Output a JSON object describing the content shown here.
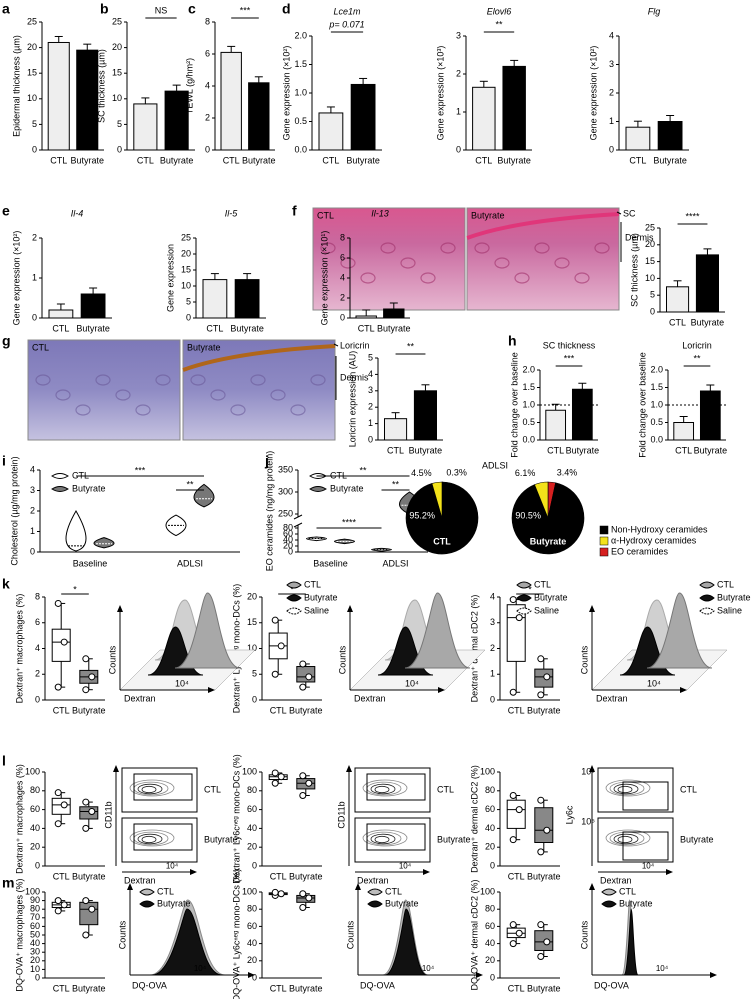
{
  "figure": {
    "panel_labels": [
      "a",
      "b",
      "c",
      "d",
      "e",
      "f",
      "g",
      "h",
      "i",
      "j",
      "k",
      "l",
      "m"
    ],
    "images": [
      {
        "label": "CTL"
      },
      {
        "label": "Butyrate",
        "markers": [
          "SC",
          "Dermis"
        ]
      },
      {
        "label": "CTL"
      },
      {
        "label": "Butyrate",
        "markers": [
          "Loricrin",
          "Dermis"
        ]
      }
    ],
    "flow": [
      {
        "legend": [
          "CTL",
          "Butyrate",
          "Saline"
        ],
        "xlabel": "Dextran",
        "ylabel": "Counts",
        "xticks": [
          "10⁴"
        ]
      },
      {
        "legend": [
          "CTL",
          "Butyrate",
          "Saline"
        ],
        "xlabel": "Dextran",
        "ylabel": "Counts",
        "xticks": [
          "10⁴"
        ]
      },
      {
        "legend": [
          "CTL",
          "Butyrate",
          "Saline"
        ],
        "xlabel": "Dextran",
        "ylabel": "Counts",
        "xticks": [
          "10⁴"
        ]
      },
      {
        "groups": [
          "CTL",
          "Butyrate"
        ],
        "xlabel": "Dextran",
        "ylabel": "CD11b",
        "xticks": [
          "10⁴"
        ]
      },
      {
        "groups": [
          "CTL",
          "Butyrate"
        ],
        "xlabel": "Dextran",
        "ylabel": "CD11b",
        "xticks": [
          "10⁴"
        ]
      },
      {
        "groups": [
          "CTL",
          "Butyrate"
        ],
        "xlabel": "Dextran",
        "ylabel": "Ly6c",
        "xticks": [
          "10⁴"
        ],
        "yticks": [
          "10⁵",
          "10⁵"
        ]
      },
      {
        "legend": [
          "CTL",
          "Butyrate"
        ],
        "xlabel": "DQ-OVA",
        "ylabel": "Counts",
        "xticks": [
          "10⁴"
        ]
      },
      {
        "legend": [
          "CTL",
          "Butyrate"
        ],
        "xlabel": "DQ-OVA",
        "ylabel": "Counts",
        "xticks": [
          "10⁴"
        ]
      },
      {
        "legend": [
          "CTL",
          "Butyrate"
        ],
        "xlabel": "DQ-OVA",
        "ylabel": "Counts",
        "xticks": [
          "10⁴"
        ]
      }
    ]
  },
  "chart_data": [
    {
      "type": "bar",
      "ylabel": "Epidermal thickness (µm)",
      "categories": [
        "CTL",
        "Butyrate"
      ],
      "values": [
        21,
        19.5
      ],
      "colors": [
        "#eeeeee",
        "#000000"
      ],
      "ylim": [
        0,
        25
      ],
      "yticks": [
        0,
        5,
        10,
        15,
        20,
        25
      ]
    },
    {
      "type": "bar",
      "ylabel": "SC thickness (µm)",
      "categories": [
        "CTL",
        "Butyrate"
      ],
      "values": [
        9,
        11.5
      ],
      "colors": [
        "#eeeeee",
        "#000000"
      ],
      "ylim": [
        0,
        25
      ],
      "yticks": [
        0,
        5,
        10,
        15,
        20,
        25
      ],
      "annotation": "NS"
    },
    {
      "type": "bar",
      "ylabel": "TEWL (g/hm²)",
      "categories": [
        "CTL",
        "Butyrate"
      ],
      "values": [
        6.1,
        4.2
      ],
      "colors": [
        "#eeeeee",
        "#000000"
      ],
      "ylim": [
        0,
        8
      ],
      "yticks": [
        0,
        2,
        4,
        6,
        8
      ],
      "annotation": "***"
    },
    {
      "type": "bar",
      "title": "Lce1m",
      "ylabel": "Gene expression (×10²)",
      "categories": [
        "CTL",
        "Butyrate"
      ],
      "values": [
        0.65,
        1.15
      ],
      "colors": [
        "#eeeeee",
        "#000000"
      ],
      "ylim": [
        0,
        2
      ],
      "yticks": [
        {
          "value": 0,
          "label": "0.0"
        },
        {
          "value": 0.5,
          "label": "0.5"
        },
        {
          "value": 1,
          "label": "1.0"
        },
        {
          "value": 1.5,
          "label": "1.5"
        },
        {
          "value": 2,
          "label": "2.0"
        }
      ],
      "annotation": "p= 0.071"
    },
    {
      "type": "bar",
      "title": "Elovl6",
      "ylabel": "Gene expression (×10³)",
      "categories": [
        "CTL",
        "Butyrate"
      ],
      "values": [
        1.65,
        2.2
      ],
      "colors": [
        "#eeeeee",
        "#000000"
      ],
      "ylim": [
        0,
        3
      ],
      "yticks": [
        0,
        1,
        2,
        3
      ],
      "annotation": "**"
    },
    {
      "type": "bar",
      "title": "Flg",
      "ylabel": "Gene expression (×10²)",
      "categories": [
        "CTL",
        "Butyrate"
      ],
      "values": [
        0.8,
        1.0
      ],
      "colors": [
        "#eeeeee",
        "#000000"
      ],
      "ylim": [
        0,
        4
      ],
      "yticks": [
        0,
        1,
        2,
        3,
        4
      ]
    },
    {
      "type": "bar",
      "title": "Il-4",
      "ylabel": "Gene expression (×10²)",
      "categories": [
        "CTL",
        "Butyrate"
      ],
      "values": [
        0.2,
        0.6
      ],
      "colors": [
        "#eeeeee",
        "#000000"
      ],
      "ylim": [
        0,
        2
      ],
      "yticks": [
        0,
        1,
        2
      ]
    },
    {
      "type": "bar",
      "title": "Il-5",
      "ylabel": "Gene expression",
      "categories": [
        "CTL",
        "Butyrate"
      ],
      "values": [
        12,
        12
      ],
      "colors": [
        "#eeeeee",
        "#000000"
      ],
      "ylim": [
        0,
        25
      ],
      "yticks": [
        0,
        5,
        10,
        15,
        20,
        25
      ]
    },
    {
      "type": "bar",
      "title": "Il-13",
      "ylabel": "Gene expression (×10¹)",
      "categories": [
        "CTL",
        "Butyrate"
      ],
      "values": [
        0.2,
        0.9
      ],
      "colors": [
        "#eeeeee",
        "#000000"
      ],
      "ylim": [
        0,
        8
      ],
      "yticks": [
        0,
        2,
        4,
        6,
        8
      ]
    },
    {
      "type": "bar",
      "ylabel": "SC thickness (µm)",
      "categories": [
        "CTL",
        "Butyrate"
      ],
      "values": [
        7.5,
        17
      ],
      "colors": [
        "#eeeeee",
        "#000000"
      ],
      "ylim": [
        0,
        25
      ],
      "yticks": [
        0,
        5,
        10,
        15,
        20,
        25
      ],
      "annotation": "****"
    },
    {
      "type": "bar",
      "ylabel": "Loricrin expression (AU)",
      "categories": [
        "CTL",
        "Butyrate"
      ],
      "values": [
        1.3,
        3.0
      ],
      "colors": [
        "#eeeeee",
        "#000000"
      ],
      "ylim": [
        0,
        5
      ],
      "yticks": [
        0,
        1,
        2,
        3,
        4,
        5
      ],
      "annotation": "**"
    },
    {
      "type": "bar",
      "title": "SC thickness",
      "ylabel": "Fold change over baseline",
      "categories": [
        "CTL",
        "Butyrate"
      ],
      "values": [
        0.85,
        1.45
      ],
      "colors": [
        "#eeeeee",
        "#000000"
      ],
      "ylim": [
        0,
        2
      ],
      "yticks": [
        {
          "value": 0,
          "label": "0.0"
        },
        {
          "value": 0.5,
          "label": "0.5"
        },
        {
          "value": 1,
          "label": "1.0"
        },
        {
          "value": 1.5,
          "label": "1.5"
        },
        {
          "value": 2,
          "label": "2.0"
        }
      ],
      "annotation": "***",
      "reference": 1
    },
    {
      "type": "bar",
      "title": "Loricrin",
      "ylabel": "Fold change over baseline",
      "categories": [
        "CTL",
        "Butyrate"
      ],
      "values": [
        0.5,
        1.4
      ],
      "colors": [
        "#eeeeee",
        "#000000"
      ],
      "ylim": [
        0,
        2
      ],
      "yticks": [
        {
          "value": 0,
          "label": "0.0"
        },
        {
          "value": 0.5,
          "label": "0.5"
        },
        {
          "value": 1,
          "label": "1.0"
        },
        {
          "value": 1.5,
          "label": "1.5"
        },
        {
          "value": 2,
          "label": "2.0"
        }
      ],
      "annotation": "**",
      "reference": 1
    },
    {
      "type": "violin",
      "ylabel": "Cholesterol (µg/mg protein)",
      "categories": [
        "Baseline",
        "ADLSI"
      ],
      "series": [
        {
          "name": "CTL",
          "color": "#ffffff",
          "values": [
            0.3,
            1.3
          ],
          "low": [
            0.05,
            0.8
          ],
          "high": [
            2.0,
            1.8
          ]
        },
        {
          "name": "Butyrate",
          "color": "#777777",
          "values": [
            0.4,
            2.6
          ],
          "low": [
            0.2,
            2.2
          ],
          "high": [
            0.7,
            3.3
          ]
        }
      ],
      "ylim": [
        0,
        4
      ],
      "yticks": [
        0,
        1,
        2,
        3,
        4
      ],
      "annotations": [
        "***",
        "**"
      ]
    },
    {
      "type": "violin",
      "ylabel": "EO ceramides (ng/mg protein)",
      "categories": [
        "Baseline",
        "ADLSI"
      ],
      "series": [
        {
          "name": "CTL",
          "color": "#ffffff",
          "values": [
            45,
            8
          ],
          "low": [
            38,
            3
          ],
          "high": [
            50,
            12
          ]
        },
        {
          "name": "Butyrate",
          "color": "#777777",
          "values": [
            35,
            270
          ],
          "low": [
            28,
            250
          ],
          "high": [
            43,
            300
          ]
        }
      ],
      "ylim": [
        0,
        350
      ],
      "yticks": [
        0,
        20,
        40,
        60,
        80,
        250,
        300,
        350
      ],
      "axis_break": [
        80,
        250
      ],
      "annotations": [
        "**",
        "**",
        "****"
      ]
    },
    {
      "type": "pie",
      "title": "ADLSI",
      "label": "CTL",
      "categories": [
        "Non-Hydroxy ceramides",
        "α-Hydroxy ceramides",
        "EO ceramides"
      ],
      "values": [
        95.2,
        4.5,
        0.3
      ],
      "value_labels": [
        "95.2%",
        "4.5%",
        "0.3%"
      ],
      "colors": [
        "#000000",
        "#f3e21a",
        "#d62020"
      ]
    },
    {
      "type": "pie",
      "label": "Butyrate",
      "values": [
        90.5,
        6.1,
        3.4
      ],
      "value_labels": [
        "90.5%",
        "6.1%",
        "3.4%"
      ],
      "colors": [
        "#000000",
        "#f3e21a",
        "#d62020"
      ]
    },
    {
      "type": "box",
      "ylabel": "Dextran⁺ macrophages (%)",
      "categories": [
        "CTL",
        "Butyrate"
      ],
      "colors": [
        "#ffffff",
        "#888888"
      ],
      "ylim": [
        0,
        8
      ],
      "yticks": [
        0,
        2,
        4,
        6,
        8
      ],
      "annotation": "*",
      "boxes": [
        {
          "min": 1,
          "q1": 3,
          "median": 4.5,
          "q3": 5.5,
          "max": 7.5
        },
        {
          "min": 0.8,
          "q1": 1.3,
          "median": 1.8,
          "q3": 2.3,
          "max": 3.2
        }
      ]
    },
    {
      "type": "box",
      "ylabel": "Dextran⁺ Ly6cⁿᵉᵍ mono-DCs (%)",
      "categories": [
        "CTL",
        "Butyrate"
      ],
      "colors": [
        "#ffffff",
        "#888888"
      ],
      "ylim": [
        0,
        20
      ],
      "yticks": [
        0,
        5,
        10,
        15,
        20
      ],
      "annotation": "*",
      "boxes": [
        {
          "min": 5,
          "q1": 8,
          "median": 10.5,
          "q3": 13,
          "max": 15.5
        },
        {
          "min": 2.5,
          "q1": 3.5,
          "median": 4.5,
          "q3": 6.5,
          "max": 7
        }
      ]
    },
    {
      "type": "box",
      "ylabel": "Dextran⁺ dermal cDC2 (%)",
      "categories": [
        "CTL",
        "Butyrate"
      ],
      "colors": [
        "#ffffff",
        "#888888"
      ],
      "ylim": [
        0,
        4
      ],
      "yticks": [
        0,
        1,
        2,
        3,
        4
      ],
      "annotation": "*",
      "boxes": [
        {
          "min": 0.3,
          "q1": 1.5,
          "median": 3.2,
          "q3": 3.7,
          "max": 3.9
        },
        {
          "min": 0.2,
          "q1": 0.5,
          "median": 0.9,
          "q3": 1.2,
          "max": 1.6
        }
      ]
    },
    {
      "type": "box",
      "ylabel": "Dextran⁺ macrophages (%)",
      "categories": [
        "CTL",
        "Butyrate"
      ],
      "colors": [
        "#ffffff",
        "#888888"
      ],
      "ylim": [
        0,
        100
      ],
      "yticks": [
        0,
        20,
        40,
        60,
        80,
        100
      ],
      "boxes": [
        {
          "min": 45,
          "q1": 55,
          "median": 65,
          "q3": 72,
          "max": 78
        },
        {
          "min": 40,
          "q1": 50,
          "median": 58,
          "q3": 63,
          "max": 68
        }
      ]
    },
    {
      "type": "box",
      "ylabel": "Dextran⁺ Ly6cⁿᵉᵍ mono-DCs (%)",
      "categories": [
        "CTL",
        "Butyrate"
      ],
      "colors": [
        "#ffffff",
        "#888888"
      ],
      "ylim": [
        0,
        100
      ],
      "yticks": [
        0,
        20,
        40,
        60,
        80,
        100
      ],
      "boxes": [
        {
          "min": 88,
          "q1": 92,
          "median": 95,
          "q3": 97,
          "max": 99
        },
        {
          "min": 75,
          "q1": 82,
          "median": 88,
          "q3": 93,
          "max": 96
        }
      ]
    },
    {
      "type": "box",
      "ylabel": "Dextran⁺ dermal cDC2 (%)",
      "categories": [
        "CTL",
        "Butyrate"
      ],
      "colors": [
        "#ffffff",
        "#888888"
      ],
      "ylim": [
        0,
        100
      ],
      "yticks": [
        0,
        20,
        40,
        60,
        80,
        100
      ],
      "boxes": [
        {
          "min": 28,
          "q1": 40,
          "median": 60,
          "q3": 70,
          "max": 75
        },
        {
          "min": 15,
          "q1": 25,
          "median": 38,
          "q3": 62,
          "max": 70
        }
      ]
    },
    {
      "type": "box",
      "ylabel": "DQ-OVA⁺ macrophages (%)",
      "categories": [
        "CTL",
        "Butyrate"
      ],
      "colors": [
        "#ffffff",
        "#888888"
      ],
      "ylim": [
        0,
        100
      ],
      "yticks": [
        0,
        10,
        20,
        30,
        40,
        50,
        60,
        70,
        80,
        90,
        100
      ],
      "boxes": [
        {
          "min": 78,
          "q1": 82,
          "median": 85,
          "q3": 88,
          "max": 90
        },
        {
          "min": 50,
          "q1": 62,
          "median": 80,
          "q3": 88,
          "max": 90
        }
      ]
    },
    {
      "type": "box",
      "ylabel": "DQ-OVA⁺ Ly6cⁿᵉᵍ mono-DCs (%)",
      "categories": [
        "CTL",
        "Butyrate"
      ],
      "colors": [
        "#ffffff",
        "#888888"
      ],
      "ylim": [
        0,
        100
      ],
      "yticks": [
        0,
        20,
        40,
        60,
        80,
        100
      ],
      "boxes": [
        {
          "min": 96,
          "q1": 97,
          "median": 98,
          "q3": 99,
          "max": 99.5
        },
        {
          "min": 82,
          "q1": 88,
          "median": 93,
          "q3": 96,
          "max": 98
        }
      ]
    },
    {
      "type": "box",
      "ylabel": "DQ-OVA⁺ dermal cDC2 (%)",
      "categories": [
        "CTL",
        "Butyrate"
      ],
      "colors": [
        "#ffffff",
        "#888888"
      ],
      "ylim": [
        0,
        100
      ],
      "yticks": [
        0,
        20,
        40,
        60,
        80,
        100
      ],
      "boxes": [
        {
          "min": 40,
          "q1": 47,
          "median": 52,
          "q3": 58,
          "max": 62
        },
        {
          "min": 25,
          "q1": 32,
          "median": 42,
          "q3": 55,
          "max": 62
        }
      ]
    }
  ]
}
